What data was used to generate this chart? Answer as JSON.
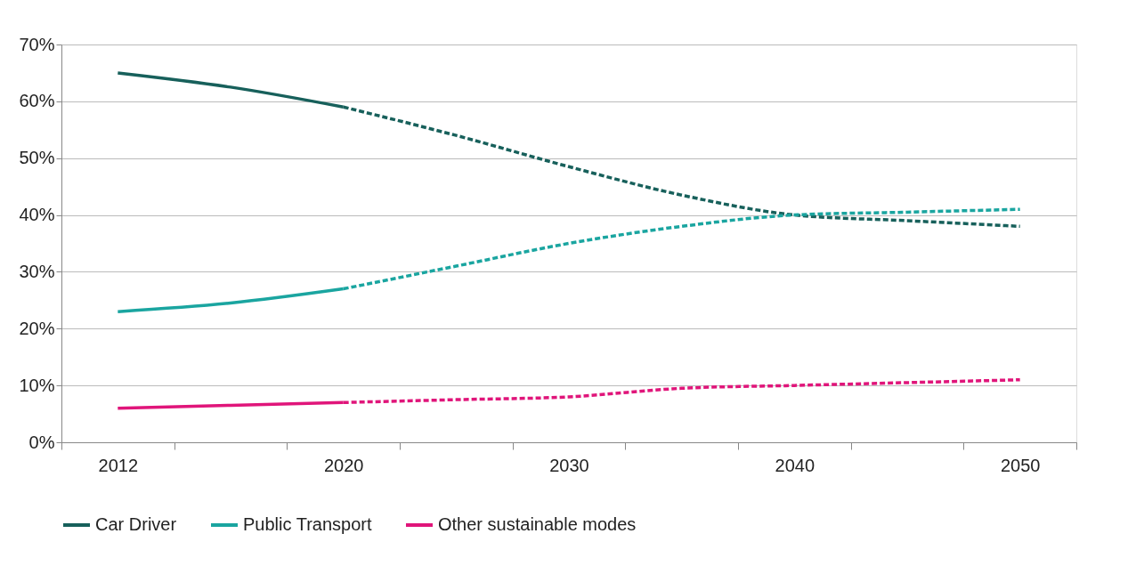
{
  "chart_data": {
    "type": "line",
    "categories": [
      "2012",
      null,
      "2020",
      null,
      "2030",
      null,
      "2040",
      null,
      "2050"
    ],
    "series": [
      {
        "name": "Car Driver",
        "color": "#17605b",
        "line_style": "solid",
        "values": [
          65,
          62.5,
          59,
          null,
          null,
          null,
          null,
          null,
          null
        ]
      },
      {
        "color": "#17605b",
        "line_style": "dashed",
        "values": [
          null,
          null,
          59,
          54,
          48.5,
          43.5,
          40,
          39,
          38
        ]
      },
      {
        "name": "Public Transport",
        "color": "#1aa5a0",
        "line_style": "solid",
        "values": [
          23,
          24.5,
          27,
          null,
          null,
          null,
          null,
          null,
          null
        ]
      },
      {
        "color": "#1aa5a0",
        "line_style": "dashed",
        "values": [
          null,
          null,
          27,
          31,
          35,
          38,
          40,
          40.5,
          41
        ]
      },
      {
        "name": "Other sustainable modes",
        "color": "#e0157a",
        "line_style": "solid",
        "values": [
          6,
          6.5,
          7,
          null,
          null,
          null,
          null,
          null,
          null
        ]
      },
      {
        "color": "#e0157a",
        "line_style": "dashed",
        "values": [
          null,
          null,
          7,
          7.5,
          8,
          9.5,
          10,
          10.5,
          11
        ]
      }
    ],
    "ylim": [
      0,
      70
    ],
    "yticks": [
      {
        "value": 0,
        "label": "0%"
      },
      {
        "value": 10,
        "label": "10%"
      },
      {
        "value": 20,
        "label": "20%"
      },
      {
        "value": 30,
        "label": "30%"
      },
      {
        "value": 40,
        "label": "40%"
      },
      {
        "value": 50,
        "label": "50%"
      },
      {
        "value": 60,
        "label": "60%"
      },
      {
        "value": 70,
        "label": "70%"
      }
    ],
    "grid": "y",
    "legend": "bottom",
    "marker": "none"
  }
}
